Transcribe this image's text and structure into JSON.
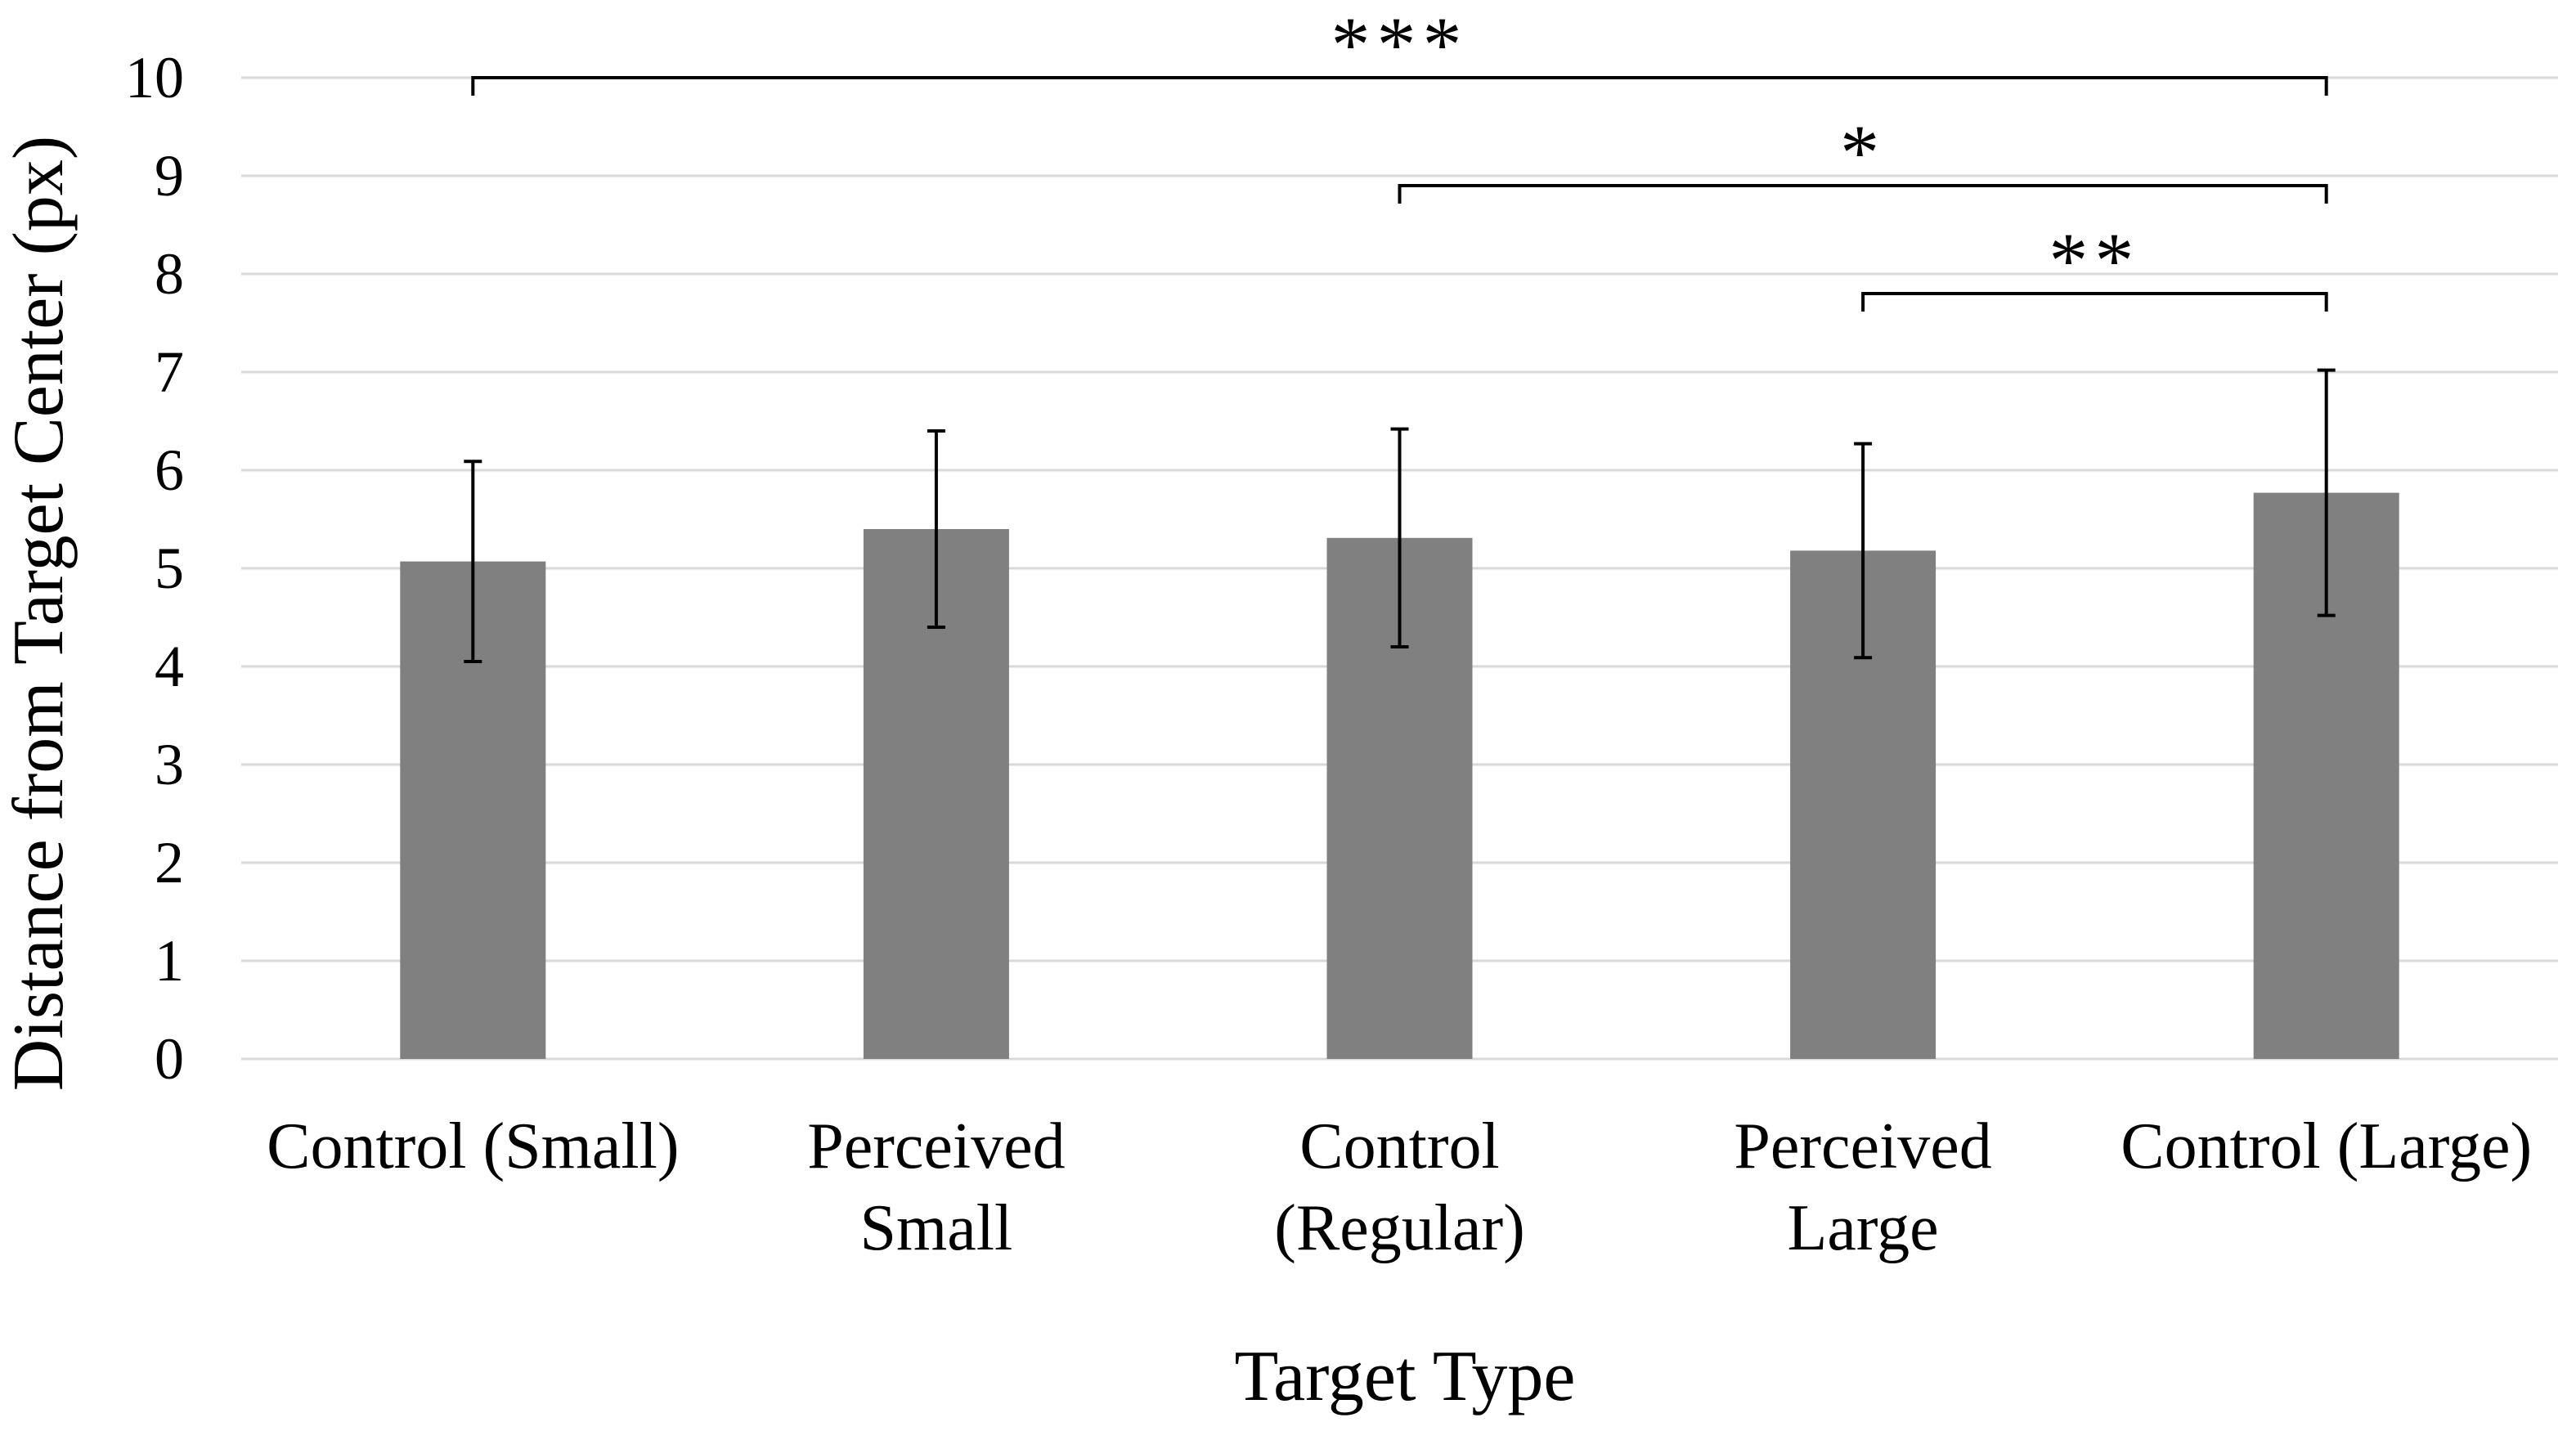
{
  "chart_data": {
    "type": "bar",
    "title": "",
    "xlabel": "Target Type",
    "ylabel": "Distance from Target Center (px)",
    "ylim": [
      0,
      10
    ],
    "yticks": [
      0,
      1,
      2,
      3,
      4,
      5,
      6,
      7,
      8,
      9,
      10
    ],
    "grid": true,
    "categories": [
      [
        "Control (Small)"
      ],
      [
        "Perceived",
        "Small"
      ],
      [
        "Control",
        "(Regular)"
      ],
      [
        "Perceived",
        "Large"
      ],
      [
        "Control (Large)"
      ]
    ],
    "values": [
      5.07,
      5.4,
      5.31,
      5.18,
      5.77
    ],
    "error": [
      1.02,
      1.0,
      1.11,
      1.09,
      1.25
    ],
    "bar_color": "#808080",
    "grid_color": "#d9d9d9",
    "significance": [
      {
        "from": 0,
        "to": 4,
        "level": 10.0,
        "label": "***"
      },
      {
        "from": 2,
        "to": 4,
        "level": 8.9,
        "label": "*"
      },
      {
        "from": 3,
        "to": 4,
        "level": 7.8,
        "label": "**"
      }
    ]
  }
}
